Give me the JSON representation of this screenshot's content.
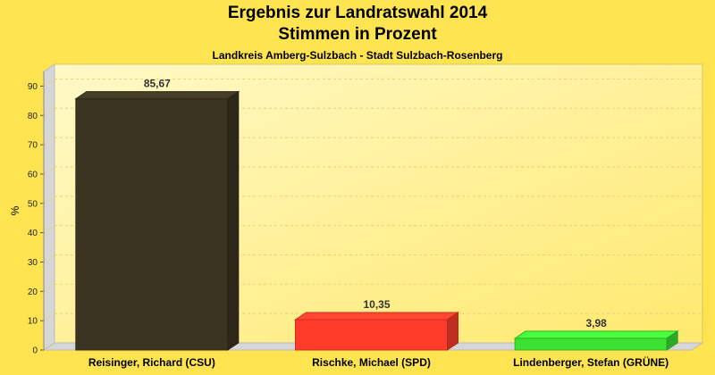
{
  "chart_data": {
    "type": "bar",
    "title": "Ergebnis zur Landratswahl 2014",
    "subtitle_line": "Stimmen in Prozent",
    "subtitle": "Landkreis Amberg-Sulzbach - Stadt Sulzbach-Rosenberg",
    "ylabel": "%",
    "xlabel": "",
    "ylim": [
      0,
      95
    ],
    "yticks": [
      0,
      10,
      20,
      30,
      40,
      50,
      60,
      70,
      80,
      90
    ],
    "grid": true,
    "categories": [
      "Reisinger, Richard (CSU)",
      "Rischke, Michael (SPD)",
      "Lindenberger, Stefan (GRÜNE)"
    ],
    "values": [
      85.67,
      10.35,
      3.98
    ],
    "value_labels": [
      "85,67",
      "10,35",
      "3,98"
    ],
    "colors": [
      "#3a3420",
      "#ff3b2a",
      "#3de133"
    ]
  }
}
